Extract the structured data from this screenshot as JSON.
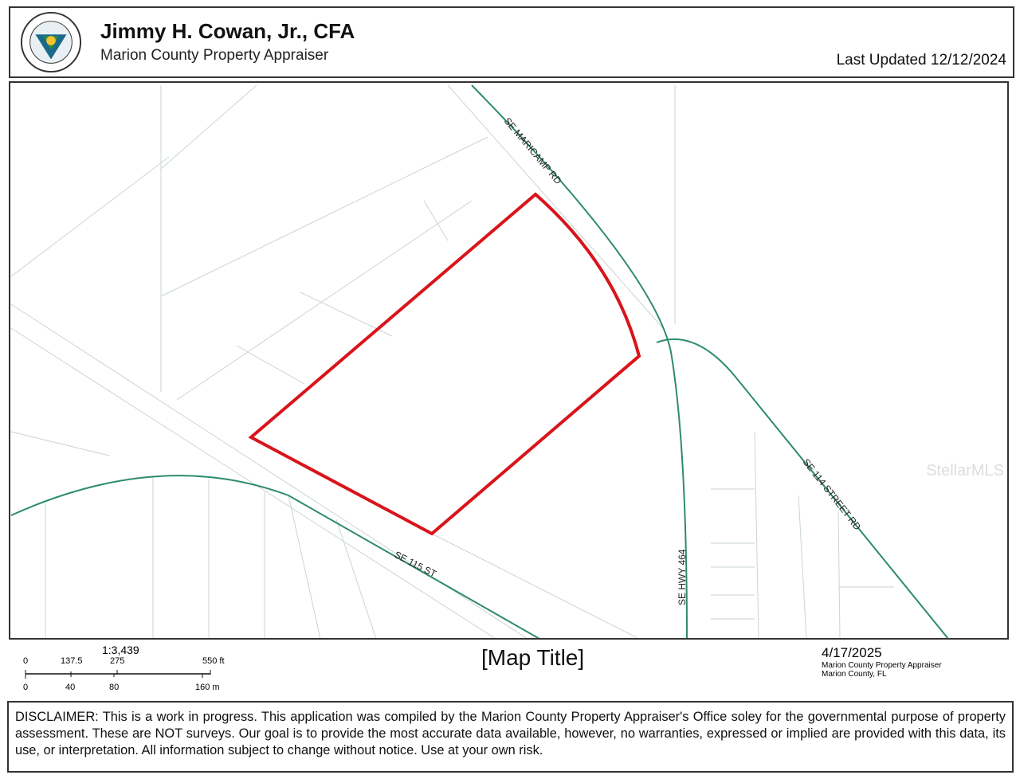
{
  "header": {
    "title": "Jimmy H. Cowan, Jr., CFA",
    "subtitle": "Marion County Property Appraiser",
    "last_updated": "Last Updated 12/12/2024",
    "seal_text": "PROPERTY APPRAISER MARION COUNTY, FLORIDA"
  },
  "map": {
    "roads": [
      "SE MARICAMP RD",
      "SE 115 ST",
      "SE HWY 464",
      "SE 114 STREET RD"
    ],
    "parcel_outline_color": "#d9141b",
    "road_color": "#2e8b6e",
    "watermark": "StellarMLS"
  },
  "scale": {
    "ratio": "1:3,439",
    "ft_labels": [
      "0",
      "137.5",
      "275",
      "550 ft"
    ],
    "m_labels": [
      "0",
      "40",
      "80",
      "160 m"
    ]
  },
  "footer": {
    "map_title": "[Map Title]",
    "date": "4/17/2025",
    "org_line1": "Marion County Property Appraiser",
    "org_line2": "Marion County, FL"
  },
  "disclaimer": "DISCLAIMER: This is a work in progress. This application was compiled by the Marion County Property Appraiser's Office soley for the governmental purpose of property assessment. These are NOT surveys. Our goal is to provide the most accurate data available, however, no warranties, expressed or implied are provided with this data, its use, or interpretation. All information subject to change without notice. Use at your own risk."
}
